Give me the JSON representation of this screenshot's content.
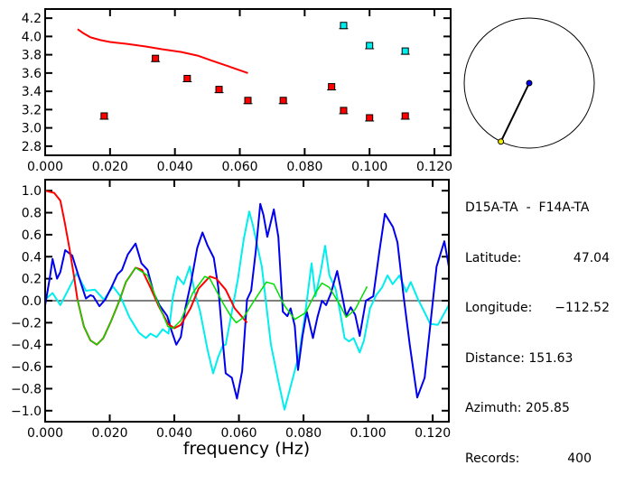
{
  "info": {
    "title": "D15A-TA  -  F14A-TA",
    "rows": [
      {
        "label": "Latitude:",
        "value": "47.04"
      },
      {
        "label": "Longitude:",
        "value": "−112.52"
      },
      {
        "label": "Distance:",
        "value": "151.63"
      },
      {
        "label": "Azimuth:",
        "value": "205.85"
      },
      {
        "label": "Records:",
        "value": "400"
      }
    ]
  },
  "azimuth_deg": 205.85,
  "colors": {
    "red": "#ff0000",
    "blue": "#0000ee",
    "cyan": "#00eeee",
    "green": "#00dd00",
    "yellow": "#eeee00"
  },
  "chart_data": [
    {
      "type": "scatter",
      "xlim": [
        0,
        0.125
      ],
      "ylim": [
        2.7,
        4.3
      ],
      "xticks": [
        "0.000",
        "0.020",
        "0.040",
        "0.060",
        "0.080",
        "0.100",
        "0.120"
      ],
      "yticks": [
        "2.8",
        "3.0",
        "3.2",
        "3.4",
        "3.6",
        "3.8",
        "4.0",
        "4.2"
      ],
      "curve": {
        "color": "#ff0000",
        "x": [
          0.01,
          0.012,
          0.014,
          0.017,
          0.02,
          0.025,
          0.031,
          0.036,
          0.042,
          0.047,
          0.051,
          0.056,
          0.0625
        ],
        "y": [
          4.08,
          4.03,
          3.99,
          3.96,
          3.94,
          3.92,
          3.89,
          3.86,
          3.83,
          3.79,
          3.74,
          3.68,
          3.6
        ]
      },
      "points_red": {
        "x": [
          0.0182,
          0.034,
          0.0438,
          0.0536,
          0.0625,
          0.0734,
          0.0883,
          0.092,
          0.1,
          0.111
        ],
        "y": [
          3.13,
          3.76,
          3.54,
          3.42,
          3.3,
          3.3,
          3.45,
          3.19,
          3.11,
          3.13
        ]
      },
      "points_cyan": {
        "x": [
          0.092,
          0.1,
          0.111
        ],
        "y": [
          4.12,
          3.9,
          3.84
        ]
      }
    },
    {
      "type": "line",
      "xlabel": "frequency (Hz)",
      "xlim": [
        0,
        0.125
      ],
      "ylim": [
        -1.1,
        1.1
      ],
      "xticks": [
        "0.000",
        "0.020",
        "0.040",
        "0.060",
        "0.080",
        "0.100",
        "0.120"
      ],
      "yticks": [
        "−1.0",
        "−0.8",
        "−0.6",
        "−0.4",
        "−0.2",
        "0.0",
        "0.2",
        "0.4",
        "0.6",
        "0.8",
        "1.0"
      ],
      "series": [
        {
          "color": "#00eeee",
          "x": [
            0,
            0.0023,
            0.0047,
            0.0075,
            0.0098,
            0.0126,
            0.0154,
            0.0182,
            0.021,
            0.0233,
            0.0261,
            0.029,
            0.0312,
            0.0326,
            0.0345,
            0.0364,
            0.0382,
            0.0396,
            0.041,
            0.0429,
            0.0448,
            0.0462,
            0.048,
            0.0503,
            0.052,
            0.0536,
            0.055,
            0.0559,
            0.0578,
            0.0597,
            0.0615,
            0.0632,
            0.0643,
            0.0671,
            0.0699,
            0.0722,
            0.0741,
            0.076,
            0.0787,
            0.0806,
            0.0825,
            0.0837,
            0.0853,
            0.0867,
            0.088,
            0.0899,
            0.0913,
            0.0927,
            0.0941,
            0.0955,
            0.0974,
            0.0987,
            0.1006,
            0.1025,
            0.1043,
            0.106,
            0.1076,
            0.1097,
            0.1118,
            0.1132,
            0.1155,
            0.1174,
            0.1192,
            0.1216,
            0.125
          ],
          "y": [
            0.01,
            0.07,
            -0.04,
            0.12,
            0.25,
            0.09,
            0.1,
            0.01,
            0.13,
            0.04,
            -0.15,
            -0.29,
            -0.34,
            -0.3,
            -0.33,
            -0.26,
            -0.3,
            0.04,
            0.22,
            0.15,
            0.31,
            0.09,
            -0.1,
            -0.45,
            -0.66,
            -0.51,
            -0.41,
            -0.4,
            -0.1,
            0.2,
            0.56,
            0.81,
            0.69,
            0.31,
            -0.4,
            -0.73,
            -0.99,
            -0.78,
            -0.48,
            -0.1,
            0.34,
            0.04,
            0.26,
            0.5,
            0.23,
            0.11,
            -0.1,
            -0.34,
            -0.37,
            -0.34,
            -0.47,
            -0.36,
            -0.07,
            0.05,
            0.12,
            0.23,
            0.15,
            0.23,
            0.08,
            0.17,
            0.01,
            -0.1,
            -0.21,
            -0.22,
            -0.04
          ]
        },
        {
          "color": "#0000ee",
          "x": [
            0,
            0.0014,
            0.0023,
            0.0037,
            0.0047,
            0.0062,
            0.0084,
            0.0103,
            0.0126,
            0.014,
            0.0149,
            0.0168,
            0.0186,
            0.0205,
            0.0224,
            0.0238,
            0.0256,
            0.028,
            0.0298,
            0.0317,
            0.0336,
            0.0354,
            0.0378,
            0.0392,
            0.0406,
            0.042,
            0.0434,
            0.0452,
            0.0471,
            0.0487,
            0.0503,
            0.0522,
            0.0536,
            0.055,
            0.0559,
            0.0578,
            0.0594,
            0.061,
            0.0625,
            0.0638,
            0.0652,
            0.0666,
            0.0676,
            0.0688,
            0.0708,
            0.0722,
            0.0736,
            0.075,
            0.076,
            0.0773,
            0.0783,
            0.0797,
            0.081,
            0.0829,
            0.0843,
            0.0857,
            0.087,
            0.0885,
            0.0904,
            0.0918,
            0.0932,
            0.0946,
            0.096,
            0.0974,
            0.0993,
            0.1016,
            0.1035,
            0.1052,
            0.1077,
            0.1091,
            0.111,
            0.1129,
            0.1152,
            0.1175,
            0.1194,
            0.1212,
            0.1236,
            0.125
          ],
          "y": [
            -0.04,
            0.2,
            0.38,
            0.2,
            0.26,
            0.46,
            0.41,
            0.23,
            0.02,
            0.05,
            0.04,
            -0.05,
            0.01,
            0.12,
            0.24,
            0.28,
            0.42,
            0.52,
            0.34,
            0.28,
            0.07,
            -0.04,
            -0.14,
            -0.28,
            -0.4,
            -0.33,
            -0.07,
            0.17,
            0.48,
            0.62,
            0.5,
            0.39,
            0.12,
            -0.37,
            -0.66,
            -0.7,
            -0.89,
            -0.64,
            0.01,
            0.09,
            0.45,
            0.88,
            0.78,
            0.58,
            0.83,
            0.58,
            -0.1,
            -0.14,
            -0.07,
            -0.23,
            -0.63,
            -0.32,
            -0.1,
            -0.34,
            -0.15,
            0.0,
            -0.04,
            0.07,
            0.27,
            0.07,
            -0.14,
            -0.06,
            -0.13,
            -0.32,
            0.0,
            0.04,
            0.45,
            0.79,
            0.67,
            0.53,
            0.04,
            -0.4,
            -0.88,
            -0.7,
            -0.18,
            0.31,
            0.54,
            0.31
          ]
        },
        {
          "color": "#ff0000",
          "x": [
            0,
            0.0028,
            0.0047,
            0.006,
            0.0075,
            0.0089,
            0.01,
            0.012,
            0.014,
            0.016,
            0.018,
            0.0205,
            0.023,
            0.025,
            0.028,
            0.03,
            0.0326,
            0.035,
            0.038,
            0.04,
            0.042,
            0.045,
            0.0475,
            0.051,
            0.053,
            0.0559,
            0.0587,
            0.0625
          ],
          "y": [
            1.0,
            0.98,
            0.91,
            0.72,
            0.48,
            0.23,
            0.01,
            -0.235,
            -0.36,
            -0.4,
            -0.34,
            -0.18,
            0.0,
            0.17,
            0.3,
            0.28,
            0.12,
            -0.04,
            -0.21,
            -0.25,
            -0.22,
            -0.07,
            0.11,
            0.22,
            0.2,
            0.1,
            -0.07,
            -0.2
          ]
        },
        {
          "color": "#00dd00",
          "x": [
            0.01,
            0.012,
            0.014,
            0.016,
            0.018,
            0.0205,
            0.023,
            0.025,
            0.028,
            0.0317,
            0.0345,
            0.038,
            0.0396,
            0.042,
            0.0457,
            0.0494,
            0.051,
            0.055,
            0.0575,
            0.0592,
            0.0615,
            0.0643,
            0.0685,
            0.0708,
            0.074,
            0.0773,
            0.0806,
            0.0839,
            0.0857,
            0.088,
            0.0913,
            0.0932,
            0.096,
            0.0997
          ],
          "y": [
            0.01,
            -0.235,
            -0.36,
            -0.4,
            -0.34,
            -0.18,
            0.0,
            0.17,
            0.3,
            0.23,
            0.01,
            -0.235,
            -0.25,
            -0.18,
            0.07,
            0.22,
            0.2,
            -0.02,
            -0.14,
            -0.2,
            -0.15,
            -0.02,
            0.17,
            0.15,
            -0.04,
            -0.17,
            -0.11,
            0.08,
            0.16,
            0.12,
            -0.04,
            -0.15,
            -0.08,
            0.13
          ]
        }
      ]
    }
  ]
}
